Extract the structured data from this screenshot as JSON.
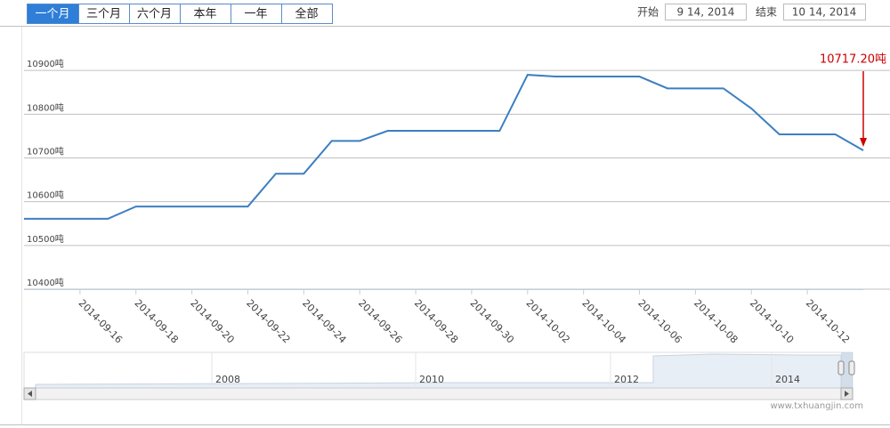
{
  "chart_data": {
    "type": "line",
    "range_buttons": [
      "一个月",
      "三个月",
      "六个月",
      "本年",
      "一年",
      "全部"
    ],
    "selected_button": 0,
    "range_inputs": {
      "start_label": "开始",
      "start": "9 14, 2014",
      "end_label": "结束",
      "end": "10 14, 2014"
    },
    "x": [
      "2014-09-14",
      "2014-09-15",
      "2014-09-16",
      "2014-09-17",
      "2014-09-18",
      "2014-09-19",
      "2014-09-20",
      "2014-09-21",
      "2014-09-22",
      "2014-09-23",
      "2014-09-24",
      "2014-09-25",
      "2014-09-26",
      "2014-09-27",
      "2014-09-28",
      "2014-09-29",
      "2014-09-30",
      "2014-10-01",
      "2014-10-02",
      "2014-10-03",
      "2014-10-04",
      "2014-10-05",
      "2014-10-06",
      "2014-10-07",
      "2014-10-08",
      "2014-10-09",
      "2014-10-10",
      "2014-10-11",
      "2014-10-12",
      "2014-10-13",
      "2014-10-14"
    ],
    "xlim": [
      "2014-09-14",
      "2014-10-14"
    ],
    "xticks": [
      "2014-09-16",
      "2014-09-18",
      "2014-09-20",
      "2014-09-22",
      "2014-09-24",
      "2014-09-26",
      "2014-09-28",
      "2014-09-30",
      "2014-10-02",
      "2014-10-04",
      "2014-10-06",
      "2014-10-08",
      "2014-10-10",
      "2014-10-12"
    ],
    "series": [
      {
        "name": null,
        "color": "#3d7fc1",
        "values": [
          10561,
          10561,
          10561,
          10561,
          10589,
          10589,
          10589,
          10589,
          10589,
          10664,
          10664,
          10739,
          10739,
          10762,
          10762,
          10762,
          10762,
          10762,
          10890,
          10886,
          10886,
          10886,
          10886,
          10859,
          10859,
          10859,
          10813,
          10754,
          10754,
          10754,
          10717.2
        ],
        "value_labels": [
          null,
          null,
          null,
          null,
          null,
          null,
          null,
          null,
          null,
          null,
          null,
          null,
          null,
          null,
          null,
          null,
          null,
          null,
          null,
          null,
          null,
          null,
          null,
          null,
          null,
          null,
          null,
          null,
          null,
          null,
          "10717.20吨"
        ],
        "value_label_color": "#cc0000"
      }
    ],
    "ylim": [
      10400,
      11000
    ],
    "yticks": [
      {
        "value": 10400,
        "label": "10400吨"
      },
      {
        "value": 10500,
        "label": "10500吨"
      },
      {
        "value": 10600,
        "label": "10600吨"
      },
      {
        "value": 10700,
        "label": "10700吨"
      },
      {
        "value": 10800,
        "label": "10800吨"
      },
      {
        "value": 10900,
        "label": "10900吨"
      }
    ],
    "grid": true,
    "navigator_labels": [
      "2008",
      "2010",
      "2012",
      "2014"
    ],
    "credit": "www.txhuangjin.com"
  }
}
